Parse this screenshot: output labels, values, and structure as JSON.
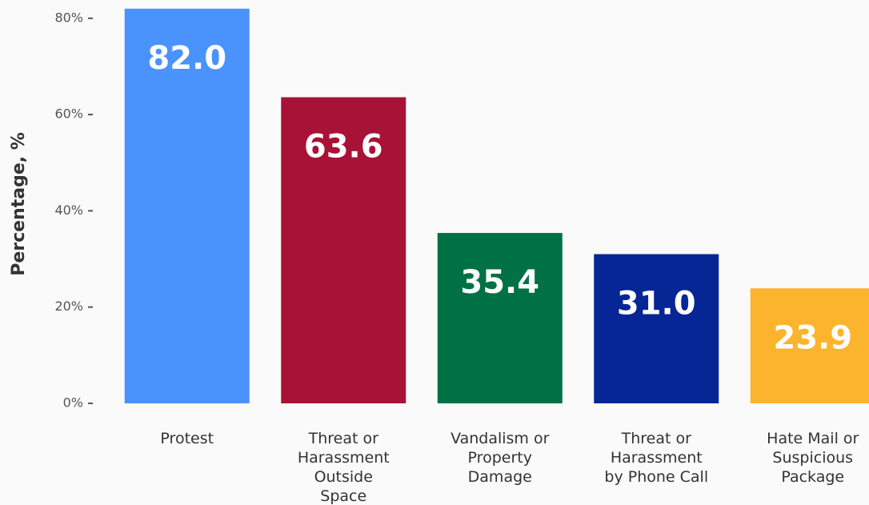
{
  "chart_data": {
    "type": "bar",
    "ylabel": "Percentage, %",
    "categories": [
      "Protest",
      "Threat or Harassment Outside Space",
      "Vandalism or Property Damage",
      "Threat or Harassment by Phone Call",
      "Hate Mail or Suspicious Package"
    ],
    "values": [
      82.0,
      63.6,
      35.4,
      31.0,
      23.9
    ],
    "value_labels": [
      "82.0",
      "63.6",
      "35.4",
      "31.0",
      "23.9"
    ],
    "colors": [
      "#4a93fc",
      "#a81237",
      "#007144",
      "#062695",
      "#fcb42d"
    ],
    "ylim": [
      0,
      83.8
    ],
    "yticks": [
      {
        "value": 0,
        "label": "0%"
      },
      {
        "value": 20,
        "label": "20%"
      },
      {
        "value": 40,
        "label": "40%"
      },
      {
        "value": 60,
        "label": "60%"
      },
      {
        "value": 80,
        "label": "80%"
      }
    ]
  }
}
